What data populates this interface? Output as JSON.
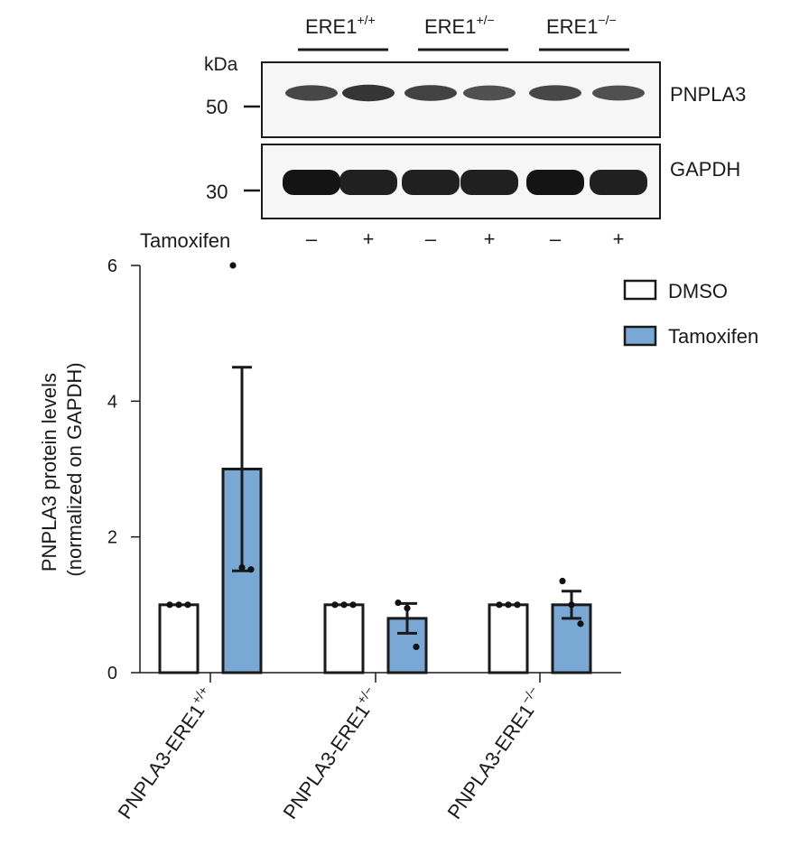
{
  "blot": {
    "genotypes": [
      {
        "base": "ERE1",
        "sup": "+/+"
      },
      {
        "base": "ERE1",
        "sup": "+/−"
      },
      {
        "base": "ERE1",
        "sup": "−/−"
      }
    ],
    "kda_label": "kDa",
    "markers": [
      "50",
      "30"
    ],
    "bands": [
      "PNPLA3",
      "GAPDH"
    ],
    "tamoxifen_label": "Tamoxifen",
    "lane_signs": [
      "–",
      "+",
      "–",
      "+",
      "–",
      "+"
    ],
    "pnpla3_intensity": [
      0.55,
      0.75,
      0.6,
      0.45,
      0.55,
      0.45
    ],
    "gapdh_intensity": [
      1.0,
      0.95,
      0.95,
      0.95,
      1.0,
      0.95
    ]
  },
  "chart_data": {
    "type": "bar",
    "ylabel_lines": [
      "PNPLA3 protein levels",
      "(normalized on GAPDH)"
    ],
    "ylim": [
      0,
      6
    ],
    "yticks": [
      "0",
      "2",
      "4",
      "6"
    ],
    "categories": [
      {
        "base": "PNPLA3-ERE1",
        "sup": "+/+"
      },
      {
        "base": "PNPLA3-ERE1",
        "sup": "+/−"
      },
      {
        "base": "PNPLA3-ERE1",
        "sup": "−/−"
      }
    ],
    "legend_position": "top-right",
    "series": [
      {
        "name": "DMSO",
        "color": "#ffffff",
        "values": [
          1.0,
          1.0,
          1.0
        ],
        "err": [
          0,
          0,
          0
        ],
        "points": [
          [
            1.0,
            1.0,
            1.0
          ],
          [
            1.0,
            1.0,
            1.0
          ],
          [
            1.0,
            1.0,
            1.0
          ]
        ]
      },
      {
        "name": "Tamoxifen",
        "color": "#7aa8d4",
        "values": [
          3.0,
          0.8,
          1.0
        ],
        "err": [
          1.5,
          0.22,
          0.2
        ],
        "points": [
          [
            6.0,
            1.55,
            1.52
          ],
          [
            1.03,
            0.95,
            0.38
          ],
          [
            1.35,
            1.0,
            0.72
          ]
        ]
      }
    ]
  }
}
